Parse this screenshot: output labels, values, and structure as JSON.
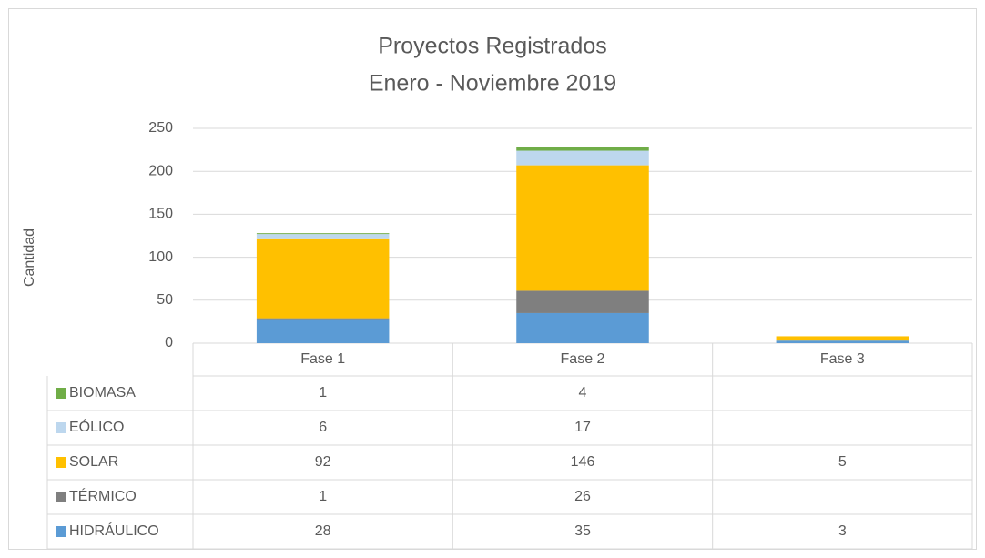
{
  "chart_data": {
    "type": "stacked_bar",
    "title": [
      "Proyectos Registrados",
      "Enero - Noviembre  2019"
    ],
    "y_label": "Cantidad",
    "categories": [
      "Fase 1",
      "Fase 2",
      "Fase 3"
    ],
    "series": [
      {
        "name": "HIDRÁULICO",
        "color": "#5b9bd5",
        "values": [
          28,
          35,
          3
        ]
      },
      {
        "name": "TÉRMICO",
        "color": "#7f7f7f",
        "values": [
          1,
          26,
          null
        ]
      },
      {
        "name": "SOLAR",
        "color": "#ffc000",
        "values": [
          92,
          146,
          5
        ]
      },
      {
        "name": "EÓLICO",
        "color": "#bdd7ee",
        "values": [
          6,
          17,
          null
        ]
      },
      {
        "name": "BIOMASA",
        "color": "#70ad47",
        "values": [
          1,
          4,
          null
        ]
      }
    ],
    "ylim": [
      0,
      250
    ],
    "yticks": [
      0,
      50,
      100,
      150,
      200,
      250
    ],
    "grid": true
  }
}
